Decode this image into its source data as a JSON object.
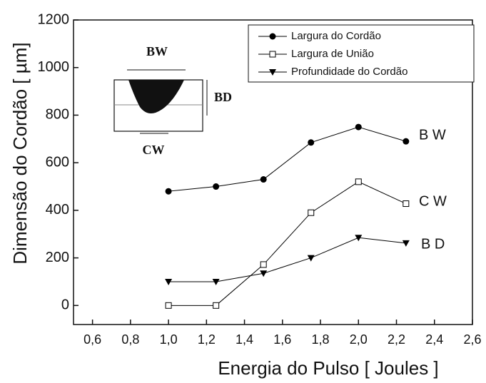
{
  "chart_data": {
    "type": "line",
    "x_label": "Energia do Pulso [ Joules ]",
    "y_label": "Dimensão do Cordão [  µm]",
    "x": [
      1.0,
      1.25,
      1.5,
      1.75,
      2.0,
      2.25
    ],
    "series": [
      {
        "name": "Largura do Cordão",
        "color": "#000000",
        "marker": "circle",
        "values": [
          480,
          500,
          530,
          685,
          750,
          690
        ]
      },
      {
        "name": "Largura de União",
        "color": "#000000",
        "marker": "square-open",
        "values": [
          0,
          0,
          172,
          390,
          520,
          428
        ]
      },
      {
        "name": "Profundidade do Cordão",
        "color": "#000000",
        "marker": "triangle-down",
        "values": [
          100,
          100,
          135,
          200,
          285,
          262
        ]
      }
    ],
    "annotations": [
      "B W",
      "C W",
      "B D"
    ],
    "inset_labels": [
      "BW",
      "BD",
      "CW"
    ],
    "xlim": [
      0.5,
      2.6
    ],
    "xticks": [
      {
        "value": 0.6,
        "label": "0,6"
      },
      {
        "value": 0.8,
        "label": "0,8"
      },
      {
        "value": 1.0,
        "label": "1,0"
      },
      {
        "value": 1.2,
        "label": "1,2"
      },
      {
        "value": 1.4,
        "label": "1,4"
      },
      {
        "value": 1.6,
        "label": "1,6"
      },
      {
        "value": 1.8,
        "label": "1,8"
      },
      {
        "value": 2.0,
        "label": "2,0"
      },
      {
        "value": 2.2,
        "label": "2,2"
      },
      {
        "value": 2.4,
        "label": "2,4"
      },
      {
        "value": 2.6,
        "label": "2,6"
      }
    ],
    "ylim": [
      -80,
      1200
    ],
    "yticks": [
      0,
      200,
      400,
      600,
      800,
      1000,
      1200
    ],
    "legend": "upper right"
  }
}
